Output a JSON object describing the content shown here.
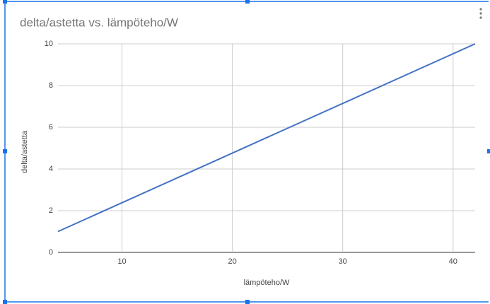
{
  "chart_data": {
    "type": "line",
    "title": "delta/astetta vs. lämpöteho/W",
    "x_label": "lämpöteho/W",
    "y_label": "delta/astetta",
    "x": [
      4.2,
      42
    ],
    "values": [
      1,
      10
    ],
    "color": "#4472c4",
    "xlim": [
      4.2,
      42
    ],
    "xticks": [
      10,
      20,
      30,
      40
    ],
    "ylim": [
      0,
      10
    ],
    "yticks": [
      0,
      2,
      4,
      6,
      8,
      10
    ],
    "grid": true
  }
}
